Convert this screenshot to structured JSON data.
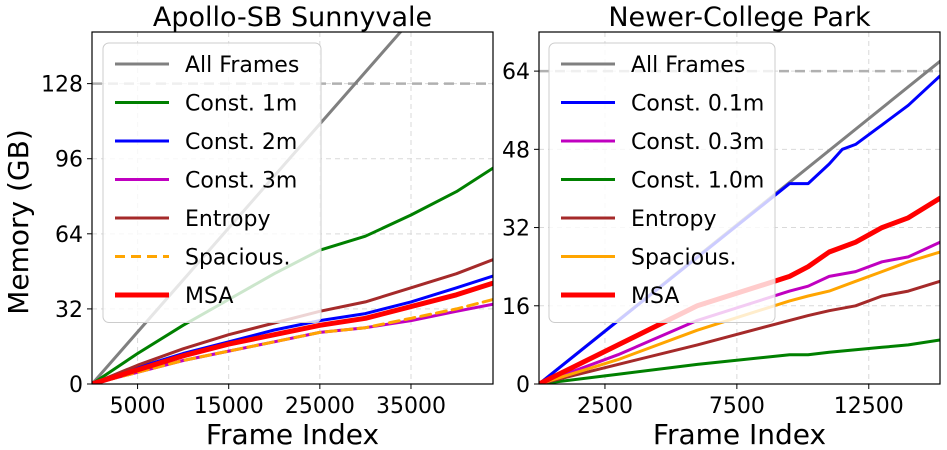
{
  "figure": {
    "ylabel": "Memory (GB)"
  },
  "chart_data": [
    {
      "type": "line",
      "title": "Apollo-SB Sunnyvale",
      "xlabel": "Frame Index",
      "ylabel": "Memory (GB)",
      "xlim": [
        0,
        44000
      ],
      "ylim": [
        0,
        150
      ],
      "xticks": [
        5000,
        15000,
        25000,
        35000
      ],
      "xtick_labels": [
        "5000",
        "15000",
        "25000",
        "35000"
      ],
      "yticks": [
        0,
        32,
        64,
        96,
        128
      ],
      "ytick_labels": [
        "0",
        "32",
        "64",
        "96",
        "128"
      ],
      "grid": true,
      "legend_position": "top-left",
      "reference_line": {
        "y": 128,
        "style": "dashed",
        "color": "#b0b0b0"
      },
      "series": [
        {
          "name": "All Frames",
          "color": "#808080",
          "dash": false,
          "width": 3,
          "x": [
            0,
            44000
          ],
          "y": [
            0,
            195
          ]
        },
        {
          "name": "Const. 1m",
          "color": "#008000",
          "dash": false,
          "width": 3,
          "x": [
            0,
            5000,
            10000,
            15000,
            20000,
            25000,
            30000,
            35000,
            40000,
            44000
          ],
          "y": [
            0,
            13,
            25,
            36,
            47,
            57,
            63,
            72,
            82,
            92
          ]
        },
        {
          "name": "Const. 2m",
          "color": "#0000ff",
          "dash": false,
          "width": 3,
          "x": [
            0,
            5000,
            10000,
            15000,
            20000,
            25000,
            30000,
            35000,
            40000,
            44000
          ],
          "y": [
            0,
            7,
            13,
            18,
            23,
            27,
            30,
            35,
            41,
            46
          ]
        },
        {
          "name": "Const. 3m",
          "color": "#c000c0",
          "dash": false,
          "width": 3,
          "x": [
            0,
            5000,
            10000,
            15000,
            20000,
            25000,
            30000,
            35000,
            40000,
            44000
          ],
          "y": [
            0,
            5,
            10,
            14,
            18,
            22,
            24,
            27,
            31,
            34
          ]
        },
        {
          "name": "Entropy",
          "color": "#a52a2a",
          "dash": false,
          "width": 3,
          "x": [
            0,
            5000,
            10000,
            15000,
            20000,
            25000,
            30000,
            35000,
            40000,
            44000
          ],
          "y": [
            0,
            8,
            15,
            21,
            26,
            31,
            35,
            41,
            47,
            53
          ]
        },
        {
          "name": "Spacious.",
          "color": "#ffa500",
          "dash": true,
          "width": 3,
          "x": [
            0,
            5000,
            10000,
            15000,
            20000,
            25000,
            30000,
            35000,
            40000,
            44000
          ],
          "y": [
            0,
            5,
            10,
            14,
            18,
            22,
            24,
            28,
            32,
            36
          ]
        },
        {
          "name": "MSA",
          "color": "#ff0000",
          "dash": false,
          "width": 5,
          "x": [
            0,
            5000,
            10000,
            15000,
            20000,
            25000,
            30000,
            35000,
            40000,
            44000
          ],
          "y": [
            0,
            6,
            12,
            17,
            21,
            25,
            28,
            33,
            38,
            43
          ]
        }
      ]
    },
    {
      "type": "line",
      "title": "Newer-College Park",
      "xlabel": "Frame Index",
      "ylabel": "",
      "xlim": [
        0,
        15200
      ],
      "ylim": [
        0,
        72
      ],
      "xticks": [
        2500,
        7500,
        12500
      ],
      "xtick_labels": [
        "2500",
        "7500",
        "12500"
      ],
      "yticks": [
        0,
        16,
        32,
        48,
        64
      ],
      "ytick_labels": [
        "0",
        "16",
        "32",
        "48",
        "64"
      ],
      "grid": true,
      "legend_position": "top-left",
      "reference_line": {
        "y": 64,
        "style": "dashed",
        "color": "#b0b0b0"
      },
      "series": [
        {
          "name": "All Frames",
          "color": "#808080",
          "dash": false,
          "width": 3,
          "x": [
            0,
            15200
          ],
          "y": [
            0,
            66
          ]
        },
        {
          "name": "Const. 0.1m",
          "color": "#0000ff",
          "dash": false,
          "width": 3,
          "x": [
            0,
            9500,
            10200,
            11000,
            11500,
            12000,
            13000,
            14000,
            15200
          ],
          "y": [
            0,
            41,
            41,
            45,
            48,
            49,
            53,
            57,
            63
          ]
        },
        {
          "name": "Const. 0.3m",
          "color": "#c000c0",
          "dash": false,
          "width": 3,
          "x": [
            0,
            3000,
            6000,
            9500,
            10200,
            11000,
            12000,
            13000,
            14000,
            15200
          ],
          "y": [
            0,
            6,
            13,
            19,
            20,
            22,
            23,
            25,
            26,
            29
          ]
        },
        {
          "name": "Const. 1.0m",
          "color": "#008000",
          "dash": false,
          "width": 3,
          "x": [
            0,
            3000,
            6000,
            9500,
            10200,
            11000,
            12000,
            13000,
            14000,
            15200
          ],
          "y": [
            0,
            2,
            4,
            6,
            6,
            6.5,
            7,
            7.5,
            8,
            9
          ]
        },
        {
          "name": "Entropy",
          "color": "#a52a2a",
          "dash": false,
          "width": 3,
          "x": [
            0,
            3000,
            6000,
            9500,
            10200,
            11000,
            12000,
            13000,
            14000,
            15200
          ],
          "y": [
            0,
            4,
            8,
            13,
            14,
            15,
            16,
            18,
            19,
            21
          ]
        },
        {
          "name": "Spacious.",
          "color": "#ffa500",
          "dash": false,
          "width": 3,
          "x": [
            0,
            3000,
            6000,
            9500,
            10200,
            11000,
            12000,
            13000,
            14000,
            15200
          ],
          "y": [
            0,
            5,
            11,
            17,
            18,
            19,
            21,
            23,
            25,
            27
          ]
        },
        {
          "name": "MSA",
          "color": "#ff0000",
          "dash": false,
          "width": 5,
          "x": [
            0,
            3000,
            6000,
            9500,
            10200,
            11000,
            12000,
            13000,
            14000,
            15200
          ],
          "y": [
            0,
            8,
            16,
            22,
            24,
            27,
            29,
            32,
            34,
            38
          ]
        }
      ]
    }
  ]
}
